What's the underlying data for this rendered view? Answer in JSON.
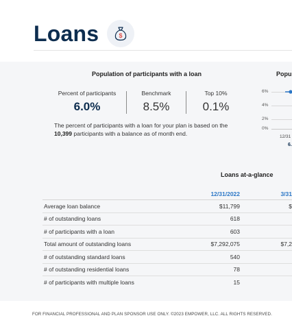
{
  "page": {
    "title": "Loans",
    "icon": "money-bag-dollar-icon"
  },
  "summary": {
    "title": "Population of participants with a loan",
    "metrics": [
      {
        "label": "Percent of participants",
        "value": "6.0%"
      },
      {
        "label": "Benchmark",
        "value": "8.5%"
      },
      {
        "label": "Top 10%",
        "value": "0.1%"
      }
    ],
    "note_prefix": "The percent of participants with a loan for your plan is based on the",
    "note_count": "10,399",
    "note_suffix": "participants with a balance as of month end."
  },
  "trend": {
    "title": "Popu",
    "y_ticks": [
      "6%",
      "4%",
      "2%",
      "0%"
    ],
    "x_label": "12/31",
    "value_label": "6."
  },
  "chart_data": {
    "type": "line",
    "title": "Popu",
    "x": [
      "12/31"
    ],
    "series": [
      {
        "values": [
          6.0
        ]
      }
    ],
    "ylim": [
      0,
      6
    ],
    "y_ticks": [
      "6%",
      "4%",
      "2%",
      "0%"
    ]
  },
  "glance": {
    "title": "Loans at-a-glance",
    "columns": [
      "12/31/2022",
      "3/31"
    ],
    "rows": [
      {
        "label": "Average loan balance",
        "v1": "$11,799",
        "v2": "$"
      },
      {
        "label": "# of outstanding loans",
        "v1": "618",
        "v2": ""
      },
      {
        "label": "# of participants with a loan",
        "v1": "603",
        "v2": ""
      },
      {
        "label": "Total amount of outstanding loans",
        "v1": "$7,292,075",
        "v2": "$7,2"
      },
      {
        "label": "# of outstanding standard loans",
        "v1": "540",
        "v2": ""
      },
      {
        "label": "# of outstanding residential loans",
        "v1": "78",
        "v2": ""
      },
      {
        "label": "# of participants with multiple loans",
        "v1": "15",
        "v2": ""
      }
    ]
  },
  "footer": "FOR FINANCIAL PROFESSIONAL AND PLAN SPONSOR USE ONLY. ©2023 EMPOWER, LLC. ALL RIGHTS RESERVED.",
  "colors": {
    "title": "#0d2d4f",
    "accent": "#2a76c6",
    "icon_red": "#e0524a",
    "panel": "#f5f6f8"
  }
}
